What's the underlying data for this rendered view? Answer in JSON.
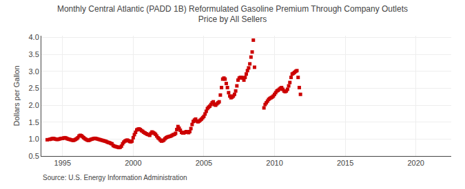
{
  "chart_data": {
    "type": "scatter",
    "title": "Monthly Central Atlantic (PADD 1B) Reformulated Gasoline Premium Through Company Outlets\nPrice by All Sellers",
    "ylabel": "Dollars per Gallon",
    "source": "Source: U.S. Energy Information Administration",
    "color": "#cc0000",
    "marker": "square",
    "grid": true,
    "xlim": [
      1993.5,
      2022.5
    ],
    "ylim": [
      0.5,
      4.05
    ],
    "xticks": [
      1995,
      2000,
      2005,
      2010,
      2015,
      2020
    ],
    "yticks": [
      0.5,
      {
        "value": 1.0,
        "label": "1.0"
      },
      1.5,
      {
        "value": 2.0,
        "label": "2.0"
      },
      2.5,
      {
        "value": 3.0,
        "label": "3.0"
      },
      3.5,
      {
        "value": 4.0,
        "label": "4.0"
      }
    ],
    "x": [
      1993.917,
      1994.083,
      1994.167,
      1994.25,
      1994.333,
      1994.417,
      1994.5,
      1994.583,
      1994.667,
      1994.75,
      1994.833,
      1994.917,
      1995.0,
      1995.083,
      1995.167,
      1995.25,
      1995.333,
      1995.417,
      1995.5,
      1995.583,
      1995.667,
      1995.75,
      1995.833,
      1995.917,
      1996.0,
      1996.083,
      1996.167,
      1996.25,
      1996.333,
      1996.417,
      1996.5,
      1996.583,
      1996.667,
      1996.75,
      1996.833,
      1996.917,
      1997.0,
      1997.083,
      1997.167,
      1997.25,
      1997.333,
      1997.417,
      1997.5,
      1997.583,
      1997.667,
      1997.75,
      1997.833,
      1997.917,
      1998.0,
      1998.083,
      1998.167,
      1998.25,
      1998.333,
      1998.417,
      1998.5,
      1998.583,
      1998.667,
      1998.75,
      1998.833,
      1998.917,
      1999.0,
      1999.083,
      1999.167,
      1999.25,
      1999.333,
      1999.417,
      1999.5,
      1999.583,
      1999.667,
      1999.75,
      1999.833,
      1999.917,
      2000.0,
      2000.083,
      2000.167,
      2000.25,
      2000.333,
      2000.417,
      2000.5,
      2000.583,
      2000.667,
      2000.75,
      2000.833,
      2000.917,
      2001.0,
      2001.083,
      2001.167,
      2001.25,
      2001.333,
      2001.417,
      2001.5,
      2001.583,
      2001.667,
      2001.75,
      2001.833,
      2001.917,
      2002.0,
      2002.083,
      2002.167,
      2002.25,
      2002.333,
      2002.417,
      2002.5,
      2002.583,
      2002.667,
      2002.75,
      2002.833,
      2002.917,
      2003.0,
      2003.083,
      2003.167,
      2003.25,
      2003.333,
      2003.417,
      2003.5,
      2003.583,
      2003.667,
      2003.75,
      2003.833,
      2003.917,
      2004.0,
      2004.083,
      2004.167,
      2004.25,
      2004.333,
      2004.417,
      2004.5,
      2004.583,
      2004.667,
      2004.75,
      2004.833,
      2004.917,
      2005.0,
      2005.083,
      2005.167,
      2005.25,
      2005.333,
      2005.417,
      2005.5,
      2005.583,
      2005.667,
      2005.75,
      2005.833,
      2005.917,
      2006.0,
      2006.083,
      2006.167,
      2006.25,
      2006.333,
      2006.417,
      2006.5,
      2006.583,
      2006.667,
      2006.75,
      2006.833,
      2006.917,
      2007.0,
      2007.083,
      2007.167,
      2007.25,
      2007.333,
      2007.417,
      2007.5,
      2007.583,
      2007.667,
      2007.75,
      2007.833,
      2007.917,
      2008.0,
      2008.083,
      2008.167,
      2008.25,
      2008.333,
      2008.417,
      2008.5,
      2008.583,
      2009.25,
      2009.333,
      2009.417,
      2009.5,
      2009.583,
      2009.667,
      2009.75,
      2009.833,
      2009.917,
      2010.0,
      2010.083,
      2010.167,
      2010.25,
      2010.333,
      2010.417,
      2010.5,
      2010.583,
      2010.667,
      2010.75,
      2010.833,
      2010.917,
      2011.0,
      2011.083,
      2011.167,
      2011.25,
      2011.333,
      2011.417,
      2011.5,
      2011.583,
      2011.667,
      2011.75,
      2011.833
    ],
    "values": [
      0.98,
      0.99,
      1.0,
      1.01,
      1.02,
      1.01,
      1.0,
      0.99,
      0.99,
      1.0,
      1.01,
      1.02,
      1.02,
      1.03,
      1.04,
      1.03,
      1.01,
      1.0,
      0.99,
      0.98,
      0.97,
      0.96,
      0.97,
      0.99,
      1.01,
      1.04,
      1.09,
      1.11,
      1.1,
      1.07,
      1.04,
      1.01,
      0.99,
      0.97,
      0.96,
      0.97,
      0.99,
      1.0,
      1.01,
      1.02,
      1.02,
      1.01,
      1.0,
      0.99,
      0.98,
      0.97,
      0.96,
      0.95,
      0.94,
      0.93,
      0.91,
      0.9,
      0.89,
      0.87,
      0.86,
      0.81,
      0.79,
      0.78,
      0.77,
      0.76,
      0.75,
      0.76,
      0.79,
      0.86,
      0.91,
      0.94,
      0.96,
      0.97,
      0.95,
      0.93,
      0.92,
      0.94,
      1.04,
      1.13,
      1.2,
      1.27,
      1.29,
      1.3,
      1.28,
      1.25,
      1.23,
      1.2,
      1.18,
      1.16,
      1.14,
      1.13,
      1.11,
      1.17,
      1.21,
      1.19,
      1.17,
      1.14,
      1.09,
      1.04,
      1.01,
      0.97,
      0.94,
      0.95,
      0.97,
      1.01,
      1.04,
      1.06,
      1.07,
      1.08,
      1.09,
      1.11,
      1.13,
      1.14,
      1.17,
      1.28,
      1.37,
      1.32,
      1.26,
      1.2,
      1.18,
      1.18,
      1.2,
      1.22,
      1.21,
      1.19,
      1.22,
      1.31,
      1.43,
      1.52,
      1.56,
      1.59,
      1.53,
      1.51,
      1.53,
      1.56,
      1.59,
      1.63,
      1.67,
      1.74,
      1.82,
      1.9,
      1.94,
      1.97,
      2.02,
      2.07,
      2.1,
      2.02,
      2.0,
      2.04,
      2.07,
      2.1,
      2.3,
      2.52,
      2.77,
      2.8,
      2.77,
      2.64,
      2.52,
      2.37,
      2.27,
      2.22,
      2.24,
      2.27,
      2.32,
      2.42,
      2.57,
      2.74,
      2.8,
      2.82,
      2.82,
      2.8,
      2.74,
      2.82,
      2.92,
      3.02,
      3.1,
      3.22,
      3.42,
      3.57,
      3.92,
      3.12,
      1.92,
      2.02,
      2.07,
      2.12,
      2.17,
      2.2,
      2.22,
      2.24,
      2.27,
      2.32,
      2.37,
      2.42,
      2.44,
      2.47,
      2.5,
      2.52,
      2.47,
      2.42,
      2.4,
      2.42,
      2.47,
      2.57,
      2.67,
      2.82,
      2.92,
      2.94,
      2.97,
      3.0,
      3.02,
      2.82,
      2.52,
      2.32
    ]
  }
}
